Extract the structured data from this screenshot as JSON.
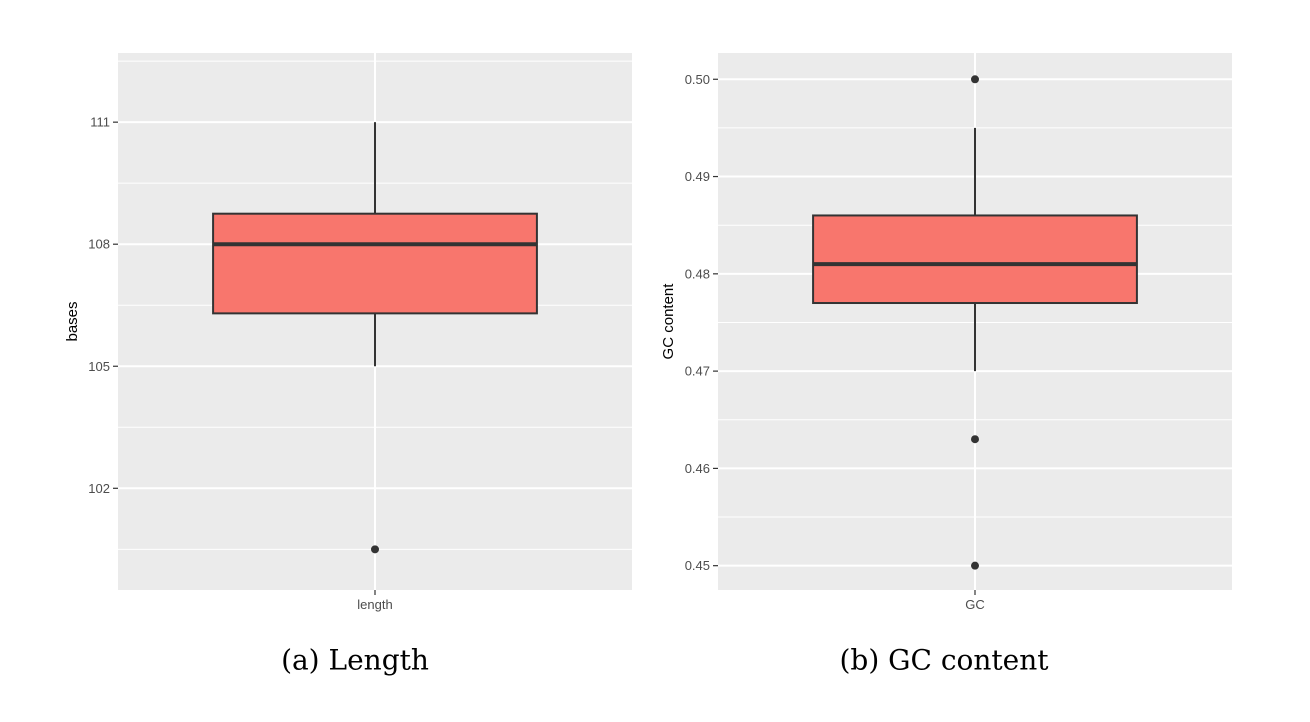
{
  "chart_data": [
    {
      "type": "box",
      "caption": "(a) Length",
      "xlabel": "",
      "ylabel": "bases",
      "categories": [
        "length"
      ],
      "ylim": [
        99.5,
        112.7
      ],
      "yticks": [
        "102",
        "105",
        "108",
        "111"
      ],
      "yticks_values": [
        102,
        105,
        108,
        111
      ],
      "minor_grid": [
        100.5,
        103.5,
        106.5,
        109.5,
        112.5
      ],
      "box": {
        "whisker_low": 105,
        "q1": 106.3,
        "median": 108,
        "q3": 108.75,
        "whisker_high": 111
      },
      "outliers": [
        100.5
      ],
      "fill": "#f8766d"
    },
    {
      "type": "box",
      "caption": "(b) GC content",
      "xlabel": "",
      "ylabel": "GC content",
      "categories": [
        "GC"
      ],
      "ylim": [
        0.4475,
        0.5027
      ],
      "yticks": [
        "0.45",
        "0.46",
        "0.47",
        "0.48",
        "0.49",
        "0.50"
      ],
      "yticks_values": [
        0.45,
        0.46,
        0.47,
        0.48,
        0.49,
        0.5
      ],
      "minor_grid": [
        0.455,
        0.465,
        0.475,
        0.485,
        0.495
      ],
      "box": {
        "whisker_low": 0.47,
        "q1": 0.477,
        "median": 0.481,
        "q3": 0.486,
        "whisker_high": 0.495
      },
      "outliers": [
        0.45,
        0.463,
        0.5
      ],
      "fill": "#f8766d"
    }
  ],
  "style": {
    "panel_bg": "#ebebeb",
    "grid": "#ffffff",
    "box_line": "#333333"
  }
}
